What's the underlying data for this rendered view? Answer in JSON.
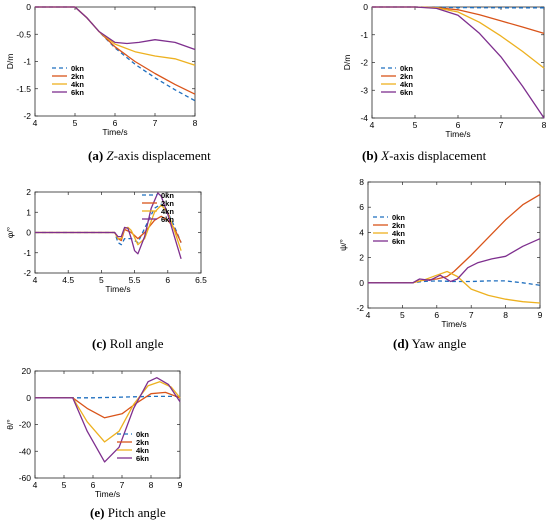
{
  "legend_labels": [
    "0kn",
    "2kn",
    "4kn",
    "6kn"
  ],
  "colors": {
    "0kn": "#1f6fbf",
    "2kn": "#d9541a",
    "4kn": "#edb120",
    "6kn": "#7e2f8e",
    "6kn_e": "#7030a0",
    "2kn_e": "#8c6a1e"
  },
  "captions": [
    {
      "letter": "(a)",
      "italic": "Z",
      "rest": "-axis displacement"
    },
    {
      "letter": "(b)",
      "italic": "X",
      "rest": "-axis displacement"
    },
    {
      "letter": "(c)",
      "italic": "",
      "rest": "Roll angle"
    },
    {
      "letter": "(d)",
      "italic": "",
      "rest": "Yaw angle"
    },
    {
      "letter": "(e)",
      "italic": "",
      "rest": "Pitch angle"
    }
  ],
  "chart_data": [
    {
      "id": "a",
      "type": "line",
      "xlabel": "Time/s",
      "ylabel": "D/m",
      "xlim": [
        4,
        8
      ],
      "ylim": [
        -2,
        0
      ],
      "xticks": [
        4,
        5,
        6,
        7,
        8
      ],
      "yticks": [
        -2,
        -1.5,
        -1,
        -0.5,
        0
      ],
      "legend": "lower-left",
      "series": [
        {
          "name": "0kn",
          "style": "dashed",
          "x": [
            4,
            5,
            5.3,
            5.6,
            6,
            6.5,
            7,
            7.5,
            8
          ],
          "y": [
            0,
            0,
            -0.2,
            -0.45,
            -0.75,
            -1.05,
            -1.3,
            -1.52,
            -1.72
          ]
        },
        {
          "name": "2kn",
          "x": [
            4,
            5,
            5.3,
            5.6,
            6,
            6.5,
            7,
            7.5,
            8
          ],
          "y": [
            0,
            0,
            -0.2,
            -0.45,
            -0.73,
            -1.0,
            -1.22,
            -1.42,
            -1.6
          ]
        },
        {
          "name": "4kn",
          "x": [
            4,
            5,
            5.3,
            5.6,
            6,
            6.5,
            7,
            7.5,
            8
          ],
          "y": [
            0,
            0,
            -0.2,
            -0.45,
            -0.68,
            -0.82,
            -0.9,
            -0.95,
            -1.07
          ]
        },
        {
          "name": "6kn",
          "x": [
            4,
            5,
            5.3,
            5.6,
            6,
            6.3,
            6.6,
            7,
            7.5,
            8
          ],
          "y": [
            0,
            0,
            -0.2,
            -0.45,
            -0.65,
            -0.67,
            -0.65,
            -0.6,
            -0.65,
            -0.78
          ]
        }
      ]
    },
    {
      "id": "b",
      "type": "line",
      "xlabel": "Time/s",
      "ylabel": "D/m",
      "xlim": [
        4,
        8
      ],
      "ylim": [
        -4,
        0
      ],
      "xticks": [
        4,
        5,
        6,
        7,
        8
      ],
      "yticks": [
        -4,
        -3,
        -2,
        -1,
        0
      ],
      "legend": "lower-left",
      "series": [
        {
          "name": "0kn",
          "style": "dashed",
          "x": [
            4,
            5,
            6,
            7,
            8
          ],
          "y": [
            0,
            0,
            -0.02,
            -0.03,
            -0.03
          ]
        },
        {
          "name": "2kn",
          "x": [
            4,
            5,
            5.5,
            6,
            6.5,
            7,
            7.5,
            8
          ],
          "y": [
            0,
            0,
            -0.02,
            -0.1,
            -0.28,
            -0.5,
            -0.72,
            -0.95
          ]
        },
        {
          "name": "4kn",
          "x": [
            4,
            5,
            5.5,
            6,
            6.5,
            7,
            7.5,
            8
          ],
          "y": [
            0,
            0,
            -0.03,
            -0.18,
            -0.55,
            -1.05,
            -1.6,
            -2.2
          ]
        },
        {
          "name": "6kn",
          "x": [
            4,
            5,
            5.5,
            6,
            6.5,
            7,
            7.5,
            8
          ],
          "y": [
            0,
            0,
            -0.05,
            -0.3,
            -0.95,
            -1.8,
            -2.85,
            -4.0
          ]
        }
      ]
    },
    {
      "id": "c",
      "type": "line",
      "xlabel": "Time/s",
      "ylabel": "φ/°",
      "xlim": [
        4,
        6.5
      ],
      "ylim": [
        -2,
        2
      ],
      "xticks": [
        4,
        4.5,
        5,
        5.5,
        6,
        6.5
      ],
      "yticks": [
        -2,
        -1,
        0,
        1,
        2
      ],
      "legend": "top-right",
      "series": [
        {
          "name": "0kn",
          "style": "dashed",
          "x": [
            4,
            5.2,
            5.25,
            5.3,
            5.35,
            5.45,
            5.55,
            5.65,
            5.8,
            5.9,
            6.0,
            6.1,
            6.2
          ],
          "y": [
            0,
            0,
            -0.5,
            -0.6,
            -0.3,
            -0.3,
            -0.5,
            0.2,
            1.2,
            1.4,
            1.0,
            0.3,
            -0.5
          ]
        },
        {
          "name": "2kn",
          "x": [
            4,
            5.2,
            5.25,
            5.3,
            5.35,
            5.45,
            5.55,
            5.65,
            5.8,
            5.9,
            6.0,
            6.1,
            6.2
          ],
          "y": [
            0,
            0,
            -0.3,
            -0.4,
            0.15,
            0.0,
            -0.3,
            0.0,
            0.6,
            0.8,
            0.6,
            0.2,
            -0.5
          ]
        },
        {
          "name": "4kn",
          "x": [
            4,
            5.2,
            5.25,
            5.3,
            5.35,
            5.4,
            5.45,
            5.55,
            5.65,
            5.8,
            5.9,
            6.0,
            6.1,
            6.2
          ],
          "y": [
            0,
            0,
            -0.3,
            -0.3,
            0.2,
            0.25,
            0.1,
            -0.6,
            -0.3,
            1.0,
            1.35,
            1.0,
            0.1,
            -0.9
          ]
        },
        {
          "name": "6kn",
          "x": [
            4,
            5.2,
            5.25,
            5.3,
            5.35,
            5.4,
            5.45,
            5.5,
            5.55,
            5.65,
            5.75,
            5.85,
            5.9,
            6.0,
            6.1,
            6.2
          ],
          "y": [
            0,
            0,
            -0.2,
            -0.2,
            0.25,
            0.2,
            -0.3,
            -0.9,
            -1.05,
            -0.2,
            1.2,
            1.95,
            1.8,
            0.9,
            -0.2,
            -1.3
          ]
        }
      ]
    },
    {
      "id": "d",
      "type": "line",
      "xlabel": "Time/s",
      "ylabel": "ψ/°",
      "xlim": [
        4,
        9
      ],
      "ylim": [
        -2,
        8
      ],
      "xticks": [
        4,
        5,
        6,
        7,
        8,
        9
      ],
      "yticks": [
        -2,
        0,
        2,
        4,
        6,
        8
      ],
      "legend": "middle-left",
      "series": [
        {
          "name": "0kn",
          "style": "dashed",
          "x": [
            4,
            5.3,
            5.6,
            6.0,
            6.5,
            7,
            7.5,
            8,
            8.5,
            9
          ],
          "y": [
            0,
            0,
            0.1,
            0.15,
            0.1,
            0.1,
            0.15,
            0.15,
            0.0,
            -0.2
          ]
        },
        {
          "name": "2kn",
          "x": [
            4,
            5.3,
            5.6,
            6.0,
            6.3,
            6.5,
            7,
            7.5,
            8,
            8.5,
            9
          ],
          "y": [
            0,
            0,
            0.2,
            0.3,
            0.5,
            0.9,
            2.2,
            3.6,
            5.0,
            6.2,
            7.0
          ]
        },
        {
          "name": "4kn",
          "x": [
            4,
            5.3,
            5.6,
            6.0,
            6.3,
            6.6,
            7,
            7.5,
            8,
            8.5,
            9
          ],
          "y": [
            0,
            0,
            0.2,
            0.6,
            0.9,
            0.5,
            -0.5,
            -1.0,
            -1.3,
            -1.5,
            -1.6
          ]
        },
        {
          "name": "6kn",
          "x": [
            4,
            5.3,
            5.5,
            5.8,
            6.1,
            6.4,
            6.6,
            6.9,
            7.2,
            7.6,
            8,
            8.5,
            9
          ],
          "y": [
            0,
            0,
            0.3,
            0.2,
            0.6,
            0.1,
            0.3,
            1.2,
            1.6,
            1.9,
            2.1,
            2.9,
            3.5
          ]
        }
      ]
    },
    {
      "id": "e",
      "type": "line",
      "xlabel": "Time/s",
      "ylabel": "θ/°",
      "xlim": [
        4,
        9
      ],
      "ylim": [
        -60,
        20
      ],
      "xticks": [
        4,
        5,
        6,
        7,
        8,
        9
      ],
      "yticks": [
        -60,
        -40,
        -20,
        0,
        20
      ],
      "legend": "lower-right",
      "series": [
        {
          "name": "0kn",
          "style": "dashed",
          "x": [
            4,
            5,
            6,
            7,
            8,
            9
          ],
          "y": [
            0,
            0,
            0,
            0.5,
            1,
            1
          ]
        },
        {
          "name": "2kn",
          "x": [
            4,
            5.3,
            5.8,
            6.4,
            7.0,
            7.5,
            8.0,
            8.5,
            9
          ],
          "y": [
            0,
            0,
            -8,
            -15,
            -12,
            -4,
            3,
            4,
            0
          ]
        },
        {
          "name": "4kn",
          "x": [
            4,
            5.3,
            5.8,
            6.4,
            6.9,
            7.4,
            7.9,
            8.3,
            8.7,
            9
          ],
          "y": [
            0,
            0,
            -18,
            -33,
            -25,
            -5,
            9,
            12,
            8,
            0
          ]
        },
        {
          "name": "6kn",
          "x": [
            4,
            5.3,
            5.8,
            6.4,
            6.9,
            7.4,
            7.9,
            8.2,
            8.6,
            9
          ],
          "y": [
            0,
            0,
            -25,
            -48,
            -37,
            -8,
            12,
            15,
            10,
            -3
          ]
        }
      ]
    }
  ]
}
